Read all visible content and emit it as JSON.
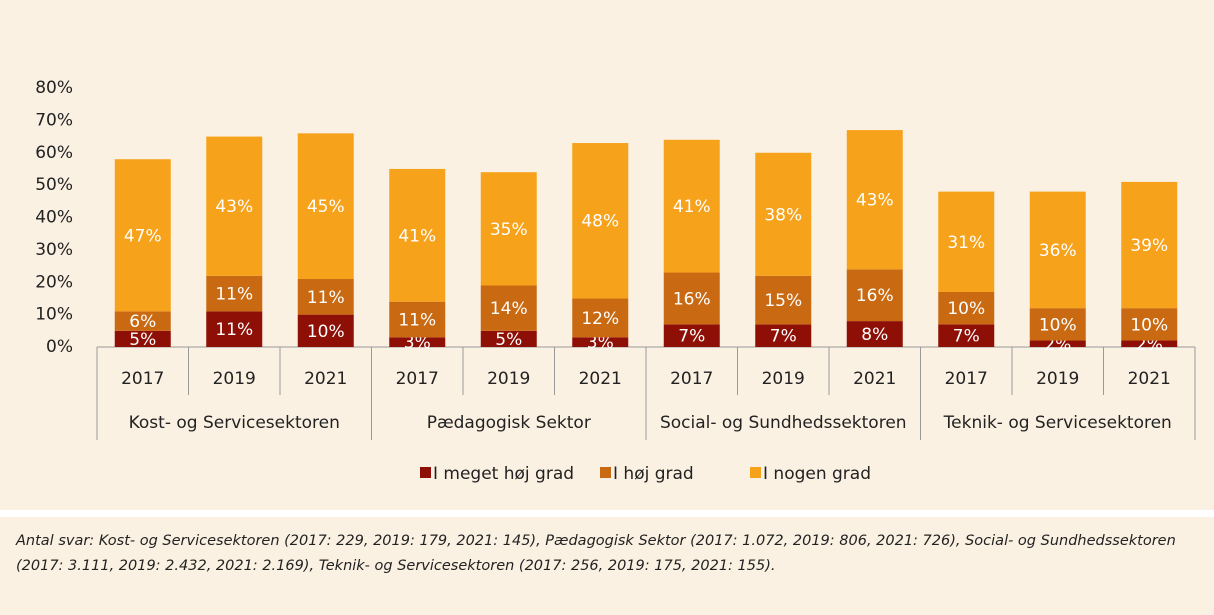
{
  "chart_data": {
    "type": "stacked_bar",
    "categories": [
      "2017",
      "2019",
      "2021",
      "2017",
      "2019",
      "2021",
      "2017",
      "2019",
      "2021",
      "2017",
      "2019",
      "2021"
    ],
    "groups": [
      "Kost- og Servicesektoren",
      "Pædagogisk Sektor",
      "Social- og Sundhedssektoren",
      "Teknik- og Servicesektoren"
    ],
    "series": [
      {
        "name": "I meget høj grad",
        "color": "#8e0f06",
        "values": [
          5,
          11,
          10,
          3,
          5,
          3,
          7,
          7,
          8,
          7,
          2,
          2
        ],
        "value_labels": [
          "5%",
          "11%",
          "10%",
          "3%",
          "5%",
          "3%",
          "7%",
          "7%",
          "8%",
          "7%",
          "2%",
          "2%"
        ]
      },
      {
        "name": "I høj grad",
        "color": "#c96a12",
        "values": [
          6,
          11,
          11,
          11,
          14,
          12,
          16,
          15,
          16,
          10,
          10,
          10
        ],
        "value_labels": [
          "6%",
          "11%",
          "11%",
          "11%",
          "14%",
          "12%",
          "16%",
          "15%",
          "16%",
          "10%",
          "10%",
          "10%"
        ]
      },
      {
        "name": "I nogen grad",
        "color": "#f7a21b",
        "values": [
          47,
          43,
          45,
          41,
          35,
          48,
          41,
          38,
          43,
          31,
          36,
          39
        ],
        "value_labels": [
          "47%",
          "43%",
          "45%",
          "41%",
          "35%",
          "48%",
          "41%",
          "38%",
          "43%",
          "31%",
          "36%",
          "39%"
        ]
      }
    ],
    "ylim": [
      0,
      80
    ],
    "yticks": [
      {
        "value": 0,
        "label": "0%"
      },
      {
        "value": 10,
        "label": "10%"
      },
      {
        "value": 20,
        "label": "20%"
      },
      {
        "value": 30,
        "label": "30%"
      },
      {
        "value": 40,
        "label": "40%"
      },
      {
        "value": 50,
        "label": "50%"
      },
      {
        "value": 60,
        "label": "60%"
      },
      {
        "value": 70,
        "label": "70%"
      },
      {
        "value": 80,
        "label": "80%"
      }
    ],
    "legend": "bottom",
    "footnote": "Antal svar: Kost- og Servicesektoren (2017: 229, 2019: 179, 2021: 145), Pædagogisk Sektor (2017: 1.072, 2019: 806, 2021: 726), Social- og Sundhedssektoren (2017: 3.111, 2019: 2.432, 2021: 2.169), Teknik- og Servicesektoren (2017: 256, 2019: 175, 2021: 155)."
  }
}
